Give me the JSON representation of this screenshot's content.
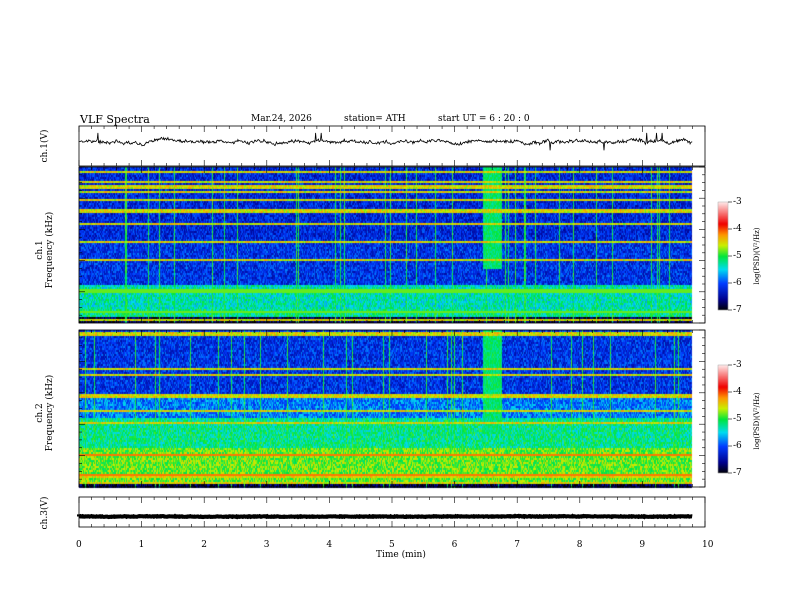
{
  "header": {
    "title": "VLF  Spectra",
    "date": "Mar.24, 2026",
    "station": "station= ATH",
    "start": "start  UT  =   6  : 20 : 0"
  },
  "chart_data": [
    {
      "type": "line",
      "name": "ch1-waveform",
      "ylabel": "ch.1(V)",
      "ylim": [
        -5,
        5
      ],
      "yticks": [
        "5",
        "-5"
      ],
      "xlim": [
        0,
        10
      ],
      "data_end_min": 9.8,
      "baseline": 0.3,
      "color": "#000000"
    },
    {
      "type": "heatmap",
      "name": "ch1-spectrogram",
      "ylabel": "ch.1\nFrequency  (kHz)",
      "ylim": [
        0,
        10
      ],
      "yticks": [
        "0",
        "2",
        "4",
        "6",
        "8",
        "10"
      ],
      "xlim": [
        0,
        10
      ],
      "colorbar": {
        "label": "log(PSD)(V²/Hz)",
        "range": [
          -7,
          -3
        ],
        "ticks": [
          "-3",
          "-4",
          "-5",
          "-6",
          "-7"
        ]
      },
      "burst": {
        "t_start": 6.45,
        "t_end": 6.75,
        "f_low": 3.5,
        "f_high": 10
      }
    },
    {
      "type": "heatmap",
      "name": "ch2-spectrogram",
      "ylabel": "ch.2\nFrequency  (kHz)",
      "ylim": [
        0,
        10
      ],
      "yticks": [
        "0",
        "2",
        "4",
        "6",
        "8",
        "10"
      ],
      "xlim": [
        0,
        10
      ],
      "colorbar": {
        "label": "log(PSD)(V²/Hz)",
        "range": [
          -7,
          -3
        ],
        "ticks": [
          "-3",
          "-4",
          "-5",
          "-6",
          "-7"
        ]
      },
      "burst": {
        "t_start": 6.45,
        "t_end": 6.75,
        "f_low": 3.5,
        "f_high": 10
      }
    },
    {
      "type": "line",
      "name": "ch3-waveform",
      "ylabel": "ch.3(V)",
      "ylim": [
        -5,
        5
      ],
      "yticks": [
        "5",
        "-5"
      ],
      "xlim": [
        0,
        10
      ],
      "data_end_min": 9.8,
      "baseline": -1.5,
      "color": "#000000"
    }
  ],
  "xaxis": {
    "label": "Time  (min)",
    "ticks": [
      "0",
      "1",
      "2",
      "3",
      "4",
      "5",
      "6",
      "7",
      "8",
      "9",
      "10"
    ]
  }
}
